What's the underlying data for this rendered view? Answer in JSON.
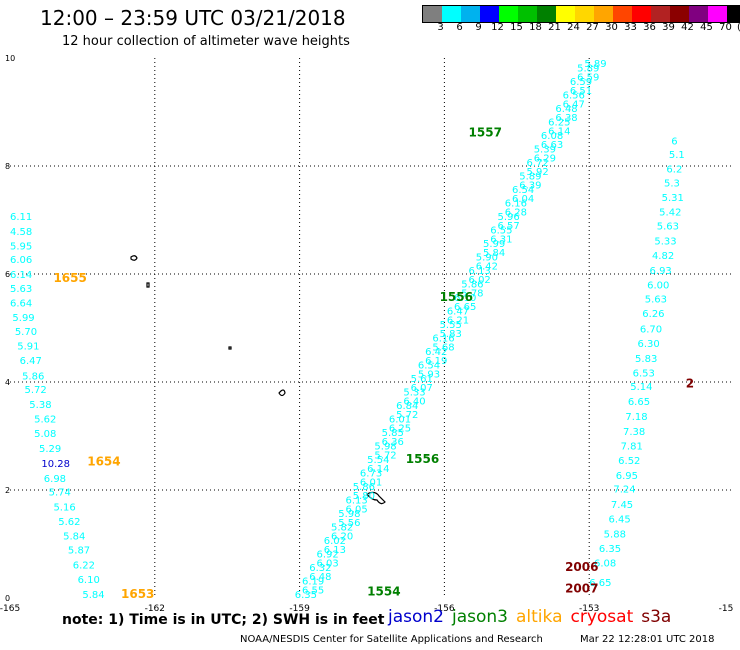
{
  "header": {
    "title": "12:00 – 23:59 UTC 03/21/2018",
    "subtitle": "12 hour collection of altimeter wave heights"
  },
  "color_scale": {
    "labels": [
      "3",
      "6",
      "9",
      "12",
      "15",
      "18",
      "21",
      "24",
      "27",
      "30",
      "33",
      "36",
      "39",
      "42",
      "45",
      "70",
      "(ft)"
    ],
    "colors": [
      "#7f7f7f",
      "#00ffff",
      "#00b2ee",
      "#0000ff",
      "#00ff00",
      "#00c000",
      "#008000",
      "#ffff00",
      "#ffd700",
      "#ffa500",
      "#ff4500",
      "#ff0000",
      "#b22222",
      "#8b0000",
      "#800080",
      "#ff00ff",
      "#000000"
    ]
  },
  "axes": {
    "x_ticks": [
      "-165",
      "-162",
      "-159",
      "-156",
      "-153",
      "-15"
    ],
    "y_ticks": [
      "0",
      "2",
      "4",
      "6",
      "8",
      "10"
    ]
  },
  "satellites": [
    {
      "name": "jason2",
      "color": "#0000cc"
    },
    {
      "name": "jason3",
      "color": "#008000"
    },
    {
      "name": "altika",
      "color": "#ffa500"
    },
    {
      "name": "cryosat",
      "color": "#ff0000"
    },
    {
      "name": "s3a",
      "color": "#800000"
    }
  ],
  "passes": [
    {
      "label": "1653",
      "color": "#ffa500",
      "pos": {
        "lon": -162.7,
        "lat": 0.0
      }
    },
    {
      "label": "1654",
      "color": "#ffa500",
      "pos": {
        "lon": -163.4,
        "lat": 2.45
      }
    },
    {
      "label": "1655",
      "color": "#ffa500",
      "pos": {
        "lon": -164.1,
        "lat": 5.85
      }
    },
    {
      "label": "1554",
      "color": "#008000",
      "pos": {
        "lon": -157.6,
        "lat": 0.05
      }
    },
    {
      "label": "1556",
      "color": "#008000",
      "pos": {
        "lon": -156.8,
        "lat": 2.5
      }
    },
    {
      "label": "1556",
      "color": "#008000",
      "pos": {
        "lon": -156.1,
        "lat": 5.5
      }
    },
    {
      "label": "1557",
      "color": "#008000",
      "pos": {
        "lon": -155.5,
        "lat": 8.55
      }
    },
    {
      "label": "2006",
      "color": "#800000",
      "pos": {
        "lon": -153.5,
        "lat": 0.5
      }
    },
    {
      "label": "2007",
      "color": "#800000",
      "pos": {
        "lon": -153.5,
        "lat": 0.1
      }
    },
    {
      "label": "2",
      "color": "#800000",
      "pos": {
        "lon": -151.0,
        "lat": 3.9
      }
    }
  ],
  "tracks": [
    {
      "name": "altika-west",
      "values": [
        {
          "v": "5.84",
          "lon": -163.5,
          "lat": 0.0,
          "color": "#00ffff"
        },
        {
          "v": "6.10",
          "lon": -163.6,
          "lat": 0.28,
          "color": "#00ffff"
        },
        {
          "v": "6.22",
          "lon": -163.7,
          "lat": 0.55,
          "color": "#00ffff"
        },
        {
          "v": "5.87",
          "lon": -163.8,
          "lat": 0.82,
          "color": "#00ffff"
        },
        {
          "v": "5.84",
          "lon": -163.9,
          "lat": 1.08,
          "color": "#00ffff"
        },
        {
          "v": "5.62",
          "lon": -164.0,
          "lat": 1.35,
          "color": "#00ffff"
        },
        {
          "v": "5.16",
          "lon": -164.1,
          "lat": 1.62,
          "color": "#00ffff"
        },
        {
          "v": "5.74",
          "lon": -164.2,
          "lat": 1.9,
          "color": "#00ffff"
        },
        {
          "v": "6.98",
          "lon": -164.3,
          "lat": 2.15,
          "color": "#00ffff"
        },
        {
          "v": "10.28",
          "lon": -164.35,
          "lat": 2.43,
          "color": "#0000cc"
        },
        {
          "v": "5.29",
          "lon": -164.4,
          "lat": 2.7,
          "color": "#00ffff"
        },
        {
          "v": "5.08",
          "lon": -164.5,
          "lat": 2.98,
          "color": "#00ffff"
        },
        {
          "v": "5.62",
          "lon": -164.5,
          "lat": 3.25,
          "color": "#00ffff"
        },
        {
          "v": "5.38",
          "lon": -164.6,
          "lat": 3.52,
          "color": "#00ffff"
        },
        {
          "v": "5.72",
          "lon": -164.7,
          "lat": 3.8,
          "color": "#00ffff"
        },
        {
          "v": "5.86",
          "lon": -164.75,
          "lat": 4.05,
          "color": "#00ffff"
        },
        {
          "v": "6.47",
          "lon": -164.8,
          "lat": 4.33,
          "color": "#00ffff"
        },
        {
          "v": "5.91",
          "lon": -164.85,
          "lat": 4.6,
          "color": "#00ffff"
        },
        {
          "v": "5.70",
          "lon": -164.9,
          "lat": 4.87,
          "color": "#00ffff"
        },
        {
          "v": "5.99",
          "lon": -164.95,
          "lat": 5.13,
          "color": "#00ffff"
        },
        {
          "v": "6.64",
          "lon": -165.0,
          "lat": 5.4,
          "color": "#00ffff"
        },
        {
          "v": "5.63",
          "lon": -165.0,
          "lat": 5.67,
          "color": "#00ffff"
        },
        {
          "v": "6.14",
          "lon": -165.0,
          "lat": 5.93,
          "color": "#00ffff"
        },
        {
          "v": "6.06",
          "lon": -165.0,
          "lat": 6.2,
          "color": "#00ffff"
        },
        {
          "v": "5.95",
          "lon": -165.0,
          "lat": 6.45,
          "color": "#00ffff"
        },
        {
          "v": "4.58",
          "lon": -165.0,
          "lat": 6.72,
          "color": "#00ffff"
        },
        {
          "v": "6.11",
          "lon": -165.0,
          "lat": 7.0,
          "color": "#00ffff"
        }
      ]
    },
    {
      "name": "east",
      "values": [
        {
          "v": "6.65",
          "lon": -153.0,
          "lat": 0.22,
          "color": "#00ffff"
        },
        {
          "v": "6.08",
          "lon": -152.9,
          "lat": 0.58,
          "color": "#00ffff"
        },
        {
          "v": "6.35",
          "lon": -152.8,
          "lat": 0.85,
          "color": "#00ffff"
        },
        {
          "v": "5.88",
          "lon": -152.7,
          "lat": 1.12,
          "color": "#00ffff"
        },
        {
          "v": "6.45",
          "lon": -152.6,
          "lat": 1.4,
          "color": "#00ffff"
        },
        {
          "v": "7.45",
          "lon": -152.55,
          "lat": 1.67,
          "color": "#00ffff"
        },
        {
          "v": "7.24",
          "lon": -152.5,
          "lat": 1.95,
          "color": "#00ffff"
        },
        {
          "v": "6.95",
          "lon": -152.45,
          "lat": 2.2,
          "color": "#00ffff"
        },
        {
          "v": "6.52",
          "lon": -152.4,
          "lat": 2.48,
          "color": "#00ffff"
        },
        {
          "v": "7.81",
          "lon": -152.35,
          "lat": 2.75,
          "color": "#00ffff"
        },
        {
          "v": "7.38",
          "lon": -152.3,
          "lat": 3.02,
          "color": "#00ffff"
        },
        {
          "v": "7.18",
          "lon": -152.25,
          "lat": 3.3,
          "color": "#00ffff"
        },
        {
          "v": "6.65",
          "lon": -152.2,
          "lat": 3.57,
          "color": "#00ffff"
        },
        {
          "v": "5.14",
          "lon": -152.15,
          "lat": 3.85,
          "color": "#00ffff"
        },
        {
          "v": "6.53",
          "lon": -152.1,
          "lat": 4.1,
          "color": "#00ffff"
        },
        {
          "v": "5.83",
          "lon": -152.05,
          "lat": 4.37,
          "color": "#00ffff"
        },
        {
          "v": "6.30",
          "lon": -152.0,
          "lat": 4.65,
          "color": "#00ffff"
        },
        {
          "v": "6.70",
          "lon": -151.95,
          "lat": 4.92,
          "color": "#00ffff"
        },
        {
          "v": "6.26",
          "lon": -151.9,
          "lat": 5.2,
          "color": "#00ffff"
        },
        {
          "v": "5.63",
          "lon": -151.85,
          "lat": 5.47,
          "color": "#00ffff"
        },
        {
          "v": "6.00",
          "lon": -151.8,
          "lat": 5.73,
          "color": "#00ffff"
        },
        {
          "v": "6.93",
          "lon": -151.75,
          "lat": 6.0,
          "color": "#00ffff"
        },
        {
          "v": "4.82",
          "lon": -151.7,
          "lat": 6.28,
          "color": "#00ffff"
        },
        {
          "v": "5.33",
          "lon": -151.65,
          "lat": 6.55,
          "color": "#00ffff"
        },
        {
          "v": "5.63",
          "lon": -151.6,
          "lat": 6.82,
          "color": "#00ffff"
        },
        {
          "v": "5.42",
          "lon": -151.55,
          "lat": 7.08,
          "color": "#00ffff"
        },
        {
          "v": "5.31",
          "lon": -151.5,
          "lat": 7.35,
          "color": "#00ffff"
        },
        {
          "v": "5.3",
          "lon": -151.45,
          "lat": 7.62,
          "color": "#00ffff"
        },
        {
          "v": "6.2",
          "lon": -151.4,
          "lat": 7.88,
          "color": "#00ffff"
        },
        {
          "v": "5.1",
          "lon": -151.35,
          "lat": 8.15,
          "color": "#00ffff"
        },
        {
          "v": "6",
          "lon": -151.3,
          "lat": 8.4,
          "color": "#00ffff"
        }
      ]
    },
    {
      "name": "jason-diagonal",
      "values": [
        {
          "v": "6.35",
          "lon": -159.1,
          "lat": 0.0,
          "color": "#00ffff"
        },
        {
          "v": "6.19",
          "lon": -158.95,
          "lat": 0.25,
          "color": "#00ffff"
        },
        {
          "v": "6.32",
          "lon": -158.8,
          "lat": 0.5,
          "color": "#00ffff"
        },
        {
          "v": "6.92",
          "lon": -158.65,
          "lat": 0.75,
          "color": "#00ffff"
        },
        {
          "v": "6.02",
          "lon": -158.5,
          "lat": 1.0,
          "color": "#00ffff"
        },
        {
          "v": "5.82",
          "lon": -158.35,
          "lat": 1.25,
          "color": "#00ffff"
        },
        {
          "v": "5.98",
          "lon": -158.2,
          "lat": 1.5,
          "color": "#00ffff"
        },
        {
          "v": "6.13",
          "lon": -158.05,
          "lat": 1.75,
          "color": "#00ffff"
        },
        {
          "v": "5.86",
          "lon": -157.9,
          "lat": 2.0,
          "color": "#00ffff"
        },
        {
          "v": "6.73",
          "lon": -157.75,
          "lat": 2.25,
          "color": "#00ffff"
        },
        {
          "v": "5.54",
          "lon": -157.6,
          "lat": 2.5,
          "color": "#00ffff"
        },
        {
          "v": "5.98",
          "lon": -157.45,
          "lat": 2.75,
          "color": "#00ffff"
        },
        {
          "v": "5.85",
          "lon": -157.3,
          "lat": 3.0,
          "color": "#00ffff"
        },
        {
          "v": "6.01",
          "lon": -157.15,
          "lat": 3.25,
          "color": "#00ffff"
        },
        {
          "v": "6.84",
          "lon": -157.0,
          "lat": 3.5,
          "color": "#00ffff"
        },
        {
          "v": "5.33",
          "lon": -156.85,
          "lat": 3.75,
          "color": "#00ffff"
        },
        {
          "v": "5.61",
          "lon": -156.7,
          "lat": 4.0,
          "color": "#00ffff"
        },
        {
          "v": "6.54",
          "lon": -156.55,
          "lat": 4.25,
          "color": "#00ffff"
        },
        {
          "v": "6.42",
          "lon": -156.4,
          "lat": 4.5,
          "color": "#00ffff"
        },
        {
          "v": "6.16",
          "lon": -156.25,
          "lat": 4.75,
          "color": "#00ffff"
        },
        {
          "v": "5.55",
          "lon": -156.1,
          "lat": 5.0,
          "color": "#00ffff"
        },
        {
          "v": "6.47",
          "lon": -155.95,
          "lat": 5.25,
          "color": "#00ffff"
        },
        {
          "v": "6.10",
          "lon": -155.8,
          "lat": 5.5,
          "color": "#00ffff"
        },
        {
          "v": "5.86",
          "lon": -155.65,
          "lat": 5.75,
          "color": "#00ffff"
        },
        {
          "v": "6.13",
          "lon": -155.5,
          "lat": 6.0,
          "color": "#00ffff"
        },
        {
          "v": "5.90",
          "lon": -155.35,
          "lat": 6.25,
          "color": "#00ffff"
        },
        {
          "v": "5.99",
          "lon": -155.2,
          "lat": 6.5,
          "color": "#00ffff"
        },
        {
          "v": "6.55",
          "lon": -155.05,
          "lat": 6.75,
          "color": "#00ffff"
        },
        {
          "v": "5.96",
          "lon": -154.9,
          "lat": 7.0,
          "color": "#00ffff"
        },
        {
          "v": "6.16",
          "lon": -154.75,
          "lat": 7.25,
          "color": "#00ffff"
        },
        {
          "v": "6.54",
          "lon": -154.6,
          "lat": 7.5,
          "color": "#00ffff"
        },
        {
          "v": "5.89",
          "lon": -154.45,
          "lat": 7.75,
          "color": "#00ffff"
        },
        {
          "v": "6.72",
          "lon": -154.3,
          "lat": 8.0,
          "color": "#00ffff"
        },
        {
          "v": "5.39",
          "lon": -154.15,
          "lat": 8.25,
          "color": "#00ffff"
        },
        {
          "v": "6.08",
          "lon": -154.0,
          "lat": 8.5,
          "color": "#00ffff"
        },
        {
          "v": "6.25",
          "lon": -153.85,
          "lat": 8.75,
          "color": "#00ffff"
        },
        {
          "v": "6.48",
          "lon": -153.7,
          "lat": 9.0,
          "color": "#00ffff"
        },
        {
          "v": "6.56",
          "lon": -153.55,
          "lat": 9.25,
          "color": "#00ffff"
        },
        {
          "v": "6.59",
          "lon": -153.4,
          "lat": 9.5,
          "color": "#00ffff"
        },
        {
          "v": "5.89",
          "lon": -153.25,
          "lat": 9.75,
          "color": "#00ffff"
        }
      ]
    },
    {
      "name": "jason-diagonal-2",
      "values": [
        {
          "v": "6.55",
          "lon": -158.95,
          "lat": 0.08,
          "color": "#00ffff"
        },
        {
          "v": "6.48",
          "lon": -158.8,
          "lat": 0.33,
          "color": "#00ffff"
        },
        {
          "v": "6.03",
          "lon": -158.65,
          "lat": 0.58,
          "color": "#00ffff"
        },
        {
          "v": "6.13",
          "lon": -158.5,
          "lat": 0.83,
          "color": "#00ffff"
        },
        {
          "v": "6.20",
          "lon": -158.35,
          "lat": 1.08,
          "color": "#00ffff"
        },
        {
          "v": "5.56",
          "lon": -158.2,
          "lat": 1.33,
          "color": "#00ffff"
        },
        {
          "v": "6.05",
          "lon": -158.05,
          "lat": 1.58,
          "color": "#00ffff"
        },
        {
          "v": "5.80",
          "lon": -157.9,
          "lat": 1.83,
          "color": "#00ffff"
        },
        {
          "v": "6.01",
          "lon": -157.75,
          "lat": 2.08,
          "color": "#00ffff"
        },
        {
          "v": "6.14",
          "lon": -157.6,
          "lat": 2.33,
          "color": "#00ffff"
        },
        {
          "v": "5.72",
          "lon": -157.45,
          "lat": 2.58,
          "color": "#00ffff"
        },
        {
          "v": "6.36",
          "lon": -157.3,
          "lat": 2.83,
          "color": "#00ffff"
        },
        {
          "v": "6.25",
          "lon": -157.15,
          "lat": 3.08,
          "color": "#00ffff"
        },
        {
          "v": "5.72",
          "lon": -157.0,
          "lat": 3.33,
          "color": "#00ffff"
        },
        {
          "v": "6.40",
          "lon": -156.85,
          "lat": 3.58,
          "color": "#00ffff"
        },
        {
          "v": "6.07",
          "lon": -156.7,
          "lat": 3.83,
          "color": "#00ffff"
        },
        {
          "v": "5.93",
          "lon": -156.55,
          "lat": 4.08,
          "color": "#00ffff"
        },
        {
          "v": "6.19",
          "lon": -156.4,
          "lat": 4.33,
          "color": "#00ffff"
        },
        {
          "v": "5.68",
          "lon": -156.25,
          "lat": 4.58,
          "color": "#00ffff"
        },
        {
          "v": "5.83",
          "lon": -156.1,
          "lat": 4.83,
          "color": "#00ffff"
        },
        {
          "v": "6.21",
          "lon": -155.95,
          "lat": 5.08,
          "color": "#00ffff"
        },
        {
          "v": "6.65",
          "lon": -155.8,
          "lat": 5.33,
          "color": "#00ffff"
        },
        {
          "v": "5.78",
          "lon": -155.65,
          "lat": 5.58,
          "color": "#00ffff"
        },
        {
          "v": "6.02",
          "lon": -155.5,
          "lat": 5.83,
          "color": "#00ffff"
        },
        {
          "v": "6.42",
          "lon": -155.35,
          "lat": 6.08,
          "color": "#00ffff"
        },
        {
          "v": "5.84",
          "lon": -155.2,
          "lat": 6.33,
          "color": "#00ffff"
        },
        {
          "v": "6.31",
          "lon": -155.05,
          "lat": 6.58,
          "color": "#00ffff"
        },
        {
          "v": "6.57",
          "lon": -154.9,
          "lat": 6.83,
          "color": "#00ffff"
        },
        {
          "v": "6.28",
          "lon": -154.75,
          "lat": 7.08,
          "color": "#00ffff"
        },
        {
          "v": "6.04",
          "lon": -154.6,
          "lat": 7.33,
          "color": "#00ffff"
        },
        {
          "v": "6.39",
          "lon": -154.45,
          "lat": 7.58,
          "color": "#00ffff"
        },
        {
          "v": "5.92",
          "lon": -154.3,
          "lat": 7.83,
          "color": "#00ffff"
        },
        {
          "v": "6.29",
          "lon": -154.15,
          "lat": 8.08,
          "color": "#00ffff"
        },
        {
          "v": "6.63",
          "lon": -154.0,
          "lat": 8.33,
          "color": "#00ffff"
        },
        {
          "v": "6.14",
          "lon": -153.85,
          "lat": 8.58,
          "color": "#00ffff"
        },
        {
          "v": "6.38",
          "lon": -153.7,
          "lat": 8.83,
          "color": "#00ffff"
        },
        {
          "v": "6.47",
          "lon": -153.55,
          "lat": 9.08,
          "color": "#00ffff"
        },
        {
          "v": "6.51",
          "lon": -153.4,
          "lat": 9.33,
          "color": "#00ffff"
        },
        {
          "v": "6.59",
          "lon": -153.25,
          "lat": 9.58,
          "color": "#00ffff"
        },
        {
          "v": "5.89",
          "lon": -153.1,
          "lat": 9.83,
          "color": "#00ffff"
        }
      ]
    }
  ],
  "footer": {
    "note": "note: 1) Time is in UTC; 2) SWH is in feet",
    "credit": "NOAA/NESDIS Center for Satellite Applications and Research",
    "timestamp": "Mar 22 12:28:01 UTC 2018"
  }
}
